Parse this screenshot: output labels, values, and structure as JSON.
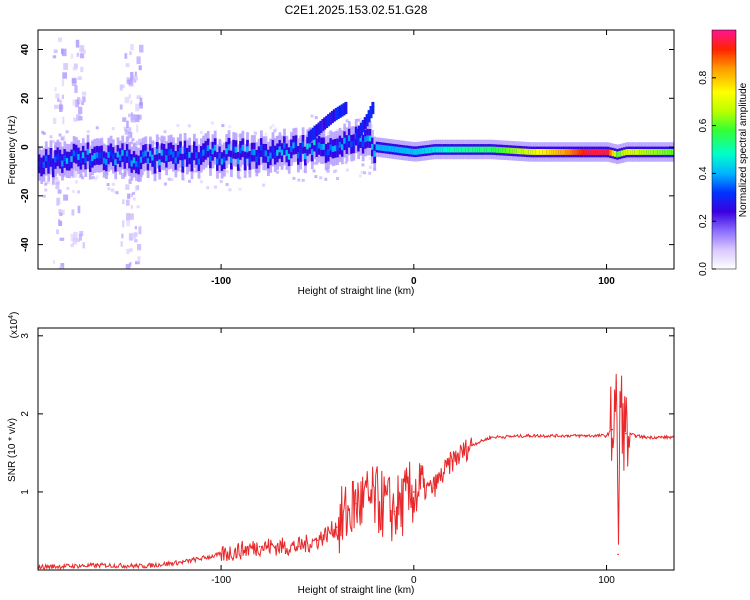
{
  "figure_title": "C2E1.2025.153.02.51.G28",
  "chart_data": [
    {
      "type": "heatmap",
      "title": "C2E1.2025.153.02.51.G28",
      "xlabel": "Height of straight line (km)",
      "ylabel": "Frequency (Hz)",
      "xlim": [
        -195,
        135
      ],
      "ylim": [
        -50,
        48
      ],
      "xticks": [
        -100,
        0,
        100
      ],
      "yticks": [
        -40,
        -20,
        0,
        20,
        40
      ],
      "colorbar": {
        "label": "Normalized spectral amplitude",
        "range": [
          0,
          1
        ],
        "ticks": [
          0.0,
          0.2,
          0.4,
          0.6,
          0.8
        ],
        "tick_labels": [
          "0.0",
          "0.2",
          "0.4",
          "0.6",
          "0.8"
        ],
        "colormap": [
          "#ffffff",
          "#d9c8ff",
          "#8a6cff",
          "#3a00e0",
          "#0033ff",
          "#00b4ff",
          "#00ffcc",
          "#33ff33",
          "#bbff00",
          "#ffff00",
          "#ff9900",
          "#ff2200",
          "#ff1493"
        ]
      },
      "ridge": {
        "description": "Main frequency ridge centred near 0 Hz across the height range",
        "x": [
          -195,
          -180,
          -160,
          -140,
          -120,
          -100,
          -80,
          -60,
          -50,
          -40,
          -30,
          -20,
          -10,
          0,
          10,
          20,
          40,
          60,
          80,
          90,
          100,
          105,
          110,
          120,
          135
        ],
        "freq": [
          -7,
          -5,
          -4,
          -5,
          -4,
          -3,
          -3,
          -1,
          0,
          1,
          2,
          0,
          -1,
          -2,
          -1,
          -1,
          -1,
          -2,
          -2,
          -2,
          -2,
          -3,
          -2,
          -2,
          -2
        ],
        "amplitude": [
          0.3,
          0.35,
          0.35,
          0.35,
          0.35,
          0.35,
          0.35,
          0.38,
          0.38,
          0.35,
          0.35,
          0.4,
          0.4,
          0.42,
          0.45,
          0.5,
          0.55,
          0.7,
          0.85,
          0.95,
          0.95,
          0.6,
          0.7,
          0.65,
          0.6
        ]
      },
      "spurs": [
        {
          "x": [
            -55,
            -48,
            -42,
            -36
          ],
          "freq": [
            4,
            9,
            13,
            16
          ]
        },
        {
          "x": [
            -30,
            -25,
            -22
          ],
          "freq": [
            5,
            11,
            16
          ]
        }
      ],
      "scatter_columns": [
        {
          "x": -185,
          "freq_range": [
            -50,
            48
          ]
        },
        {
          "x": -175,
          "freq_range": [
            -40,
            45
          ]
        },
        {
          "x": -150,
          "freq_range": [
            -50,
            40
          ]
        },
        {
          "x": -145,
          "freq_range": [
            -50,
            45
          ]
        }
      ]
    },
    {
      "type": "line",
      "title": "",
      "xlabel": "Height of straight line (km)",
      "ylabel": "SNR (10 * v/v)",
      "y_scale_label": "(x10^4)",
      "xlim": [
        -195,
        135
      ],
      "ylim": [
        0,
        3.1
      ],
      "xticks": [
        -100,
        0,
        100
      ],
      "yticks": [
        1,
        2,
        3
      ],
      "series": [
        {
          "name": "SNR",
          "color": "#e8282a",
          "x": [
            -195,
            -160,
            -140,
            -120,
            -100,
            -80,
            -60,
            -50,
            -40,
            -30,
            -20,
            -10,
            0,
            10,
            20,
            30,
            40,
            60,
            80,
            90,
            100,
            103,
            105,
            106,
            107,
            110,
            115,
            120,
            135
          ],
          "y": [
            0.04,
            0.06,
            0.05,
            0.1,
            0.2,
            0.3,
            0.3,
            0.38,
            0.55,
            0.85,
            0.9,
            0.75,
            1.0,
            1.05,
            1.4,
            1.6,
            1.7,
            1.72,
            1.72,
            1.72,
            1.72,
            1.8,
            2.4,
            0.2,
            2.1,
            1.75,
            1.72,
            1.7,
            1.7
          ]
        }
      ]
    }
  ]
}
